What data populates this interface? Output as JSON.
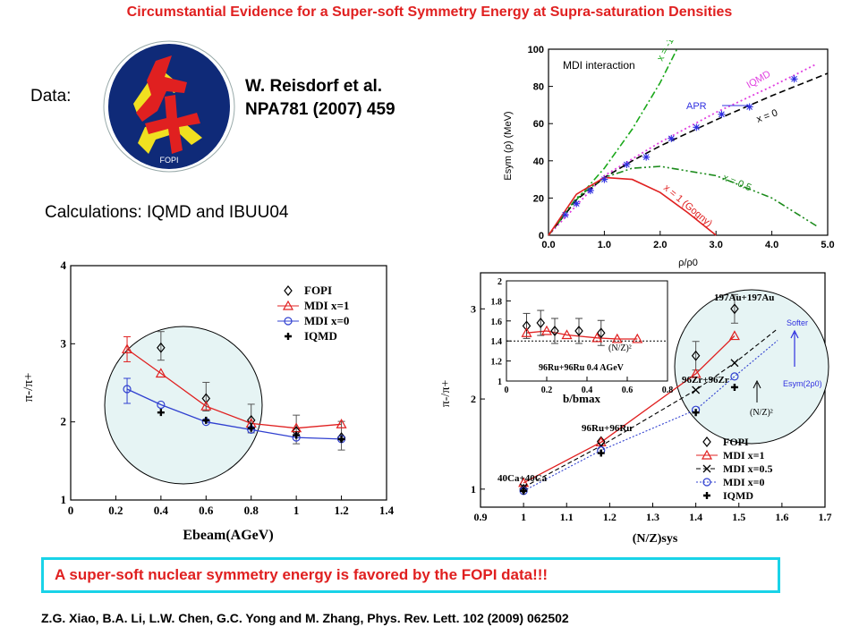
{
  "slide": {
    "title": "Circumstantial Evidence for a Super-soft Symmetry Energy at Supra-saturation Densities",
    "data_label": "Data:",
    "reference_line1": "W. Reisdorf et al.",
    "reference_line2": "NPA781 (2007) 459",
    "logo_text": "FOPI",
    "calculations_line": "Calculations: IQMD and IBUU04",
    "conclusion": "A super-soft  nuclear symmetry energy is favored by the FOPI data!!!",
    "citation": "Z.G. Xiao, B.A. Li, L.W. Chen, G.C. Yong and M. Zhang, Phys. Rev. Lett. 102 (2009) 062502"
  },
  "colors": {
    "title": "#e02020",
    "conclusion_border": "#19d3e8",
    "highlight_circle": "#e6f4f4"
  },
  "chart_data": [
    {
      "type": "line",
      "title": "MDI interaction",
      "xlabel": "ρ/ρ0",
      "ylabel": "Esym (ρ) (MeV)",
      "xlim": [
        0,
        5
      ],
      "ylim": [
        0,
        100
      ],
      "xticks": [
        "0.0",
        "1.0",
        "2.0",
        "3.0",
        "4.0",
        "5.0"
      ],
      "yticks": [
        "0",
        "20",
        "40",
        "60",
        "80",
        "100"
      ],
      "series": [
        {
          "name": "x = -1",
          "color": "#1aa81a",
          "x": [
            0,
            0.5,
            1,
            1.5,
            2,
            2.3
          ],
          "y": [
            0,
            19,
            36,
            57,
            82,
            100
          ]
        },
        {
          "name": "IQMD",
          "color": "#e040e0",
          "x": [
            0,
            1,
            2,
            3,
            4,
            4.8
          ],
          "y": [
            0,
            32,
            50,
            66,
            80,
            92
          ]
        },
        {
          "name": "x = 0",
          "color": "#000000",
          "x": [
            0,
            0.5,
            1,
            1.5,
            2,
            3,
            4,
            5
          ],
          "y": [
            0,
            19,
            31,
            40,
            48,
            62,
            75,
            87
          ]
        },
        {
          "name": "x = 0.5",
          "color": "#1a8a1a",
          "x": [
            0,
            0.5,
            1,
            1.5,
            2,
            3,
            4,
            4.8
          ],
          "y": [
            0,
            20,
            31,
            36,
            37,
            32,
            20,
            5
          ]
        },
        {
          "name": "x = 1 (Gogny)",
          "color": "#e02020",
          "x": [
            0,
            0.5,
            1,
            1.5,
            2,
            2.5,
            3
          ],
          "y": [
            0,
            22,
            31,
            30,
            23,
            12,
            0
          ]
        },
        {
          "name": "APR",
          "color": "#3030e0",
          "x": [
            0.3,
            0.5,
            0.75,
            1.0,
            1.4,
            1.75,
            2.2,
            2.65,
            3.1,
            3.6,
            4.4
          ],
          "y": [
            11,
            17,
            24,
            30,
            38,
            42,
            52,
            58,
            65,
            69,
            84
          ]
        }
      ]
    },
    {
      "type": "line",
      "xlabel": "Ebeam(AGeV)",
      "ylabel": "π-/π+",
      "xlim": [
        0,
        1.4
      ],
      "ylim": [
        1,
        4
      ],
      "xticks": [
        "0",
        "0.2",
        "0.4",
        "0.6",
        "0.8",
        "1",
        "1.2",
        "1.4"
      ],
      "yticks": [
        "1",
        "2",
        "3",
        "4"
      ],
      "series": [
        {
          "name": "FOPI",
          "x": [
            0.4,
            0.6,
            0.8,
            1.0,
            1.2
          ],
          "y": [
            2.95,
            2.3,
            2.02,
            1.88,
            1.8
          ]
        },
        {
          "name": "MDI x=1",
          "x": [
            0.25,
            0.4,
            0.6,
            0.8,
            1.0,
            1.2
          ],
          "y": [
            2.93,
            2.62,
            2.2,
            1.98,
            1.92,
            1.97
          ]
        },
        {
          "name": "MDI x=0",
          "x": [
            0.25,
            0.4,
            0.6,
            0.8,
            1.0,
            1.2
          ],
          "y": [
            2.42,
            2.22,
            2.0,
            1.9,
            1.8,
            1.78
          ]
        },
        {
          "name": "IQMD",
          "x": [
            0.4,
            0.6,
            0.8,
            1.0,
            1.2
          ],
          "y": [
            2.12,
            2.02,
            1.92,
            1.83,
            1.78
          ]
        }
      ]
    },
    {
      "type": "line",
      "xlabel": "(N/Z)sys",
      "ylabel": "π-/π+",
      "xlim": [
        0.9,
        1.7
      ],
      "ylim": [
        0.8,
        3.4
      ],
      "xticks": [
        "0.9",
        "1",
        "1.1",
        "1.2",
        "1.3",
        "1.4",
        "1.5",
        "1.6",
        "1.7"
      ],
      "yticks": [
        "1",
        "2",
        "3"
      ],
      "annotations": [
        "40Ca+40Ca",
        "96Ru+96Ru",
        "96Zr+96Zr",
        "197Au+197Au",
        "Softer",
        "Esym(2ρ0)",
        "(N/Z)²"
      ],
      "series": [
        {
          "name": "FOPI",
          "x": [
            1.0,
            1.18,
            1.4,
            1.49
          ],
          "y": [
            1.0,
            1.53,
            2.48,
            3.0
          ]
        },
        {
          "name": "MDI x=1",
          "x": [
            1.0,
            1.18,
            1.4,
            1.49
          ],
          "y": [
            1.07,
            1.52,
            2.28,
            2.7
          ]
        },
        {
          "name": "MDI x=0.5",
          "x": [
            1.0,
            1.18,
            1.4,
            1.49
          ],
          "y": [
            1.02,
            1.48,
            2.1,
            2.4
          ]
        },
        {
          "name": "MDI x=0",
          "x": [
            1.0,
            1.18,
            1.4,
            1.49
          ],
          "y": [
            0.98,
            1.43,
            1.88,
            2.25
          ]
        },
        {
          "name": "IQMD",
          "x": [
            1.0,
            1.18,
            1.4,
            1.49
          ],
          "y": [
            0.98,
            1.4,
            1.85,
            2.13
          ]
        }
      ]
    },
    {
      "type": "line",
      "title": "96Ru+96Ru 0.4 AGeV",
      "xlabel": "b/bmax",
      "xlim": [
        0,
        0.8
      ],
      "ylim": [
        1,
        2
      ],
      "xticks": [
        "0",
        "0.2",
        "0.4",
        "0.6",
        "0.8"
      ],
      "yticks": [
        "1",
        "1.2",
        "1.4",
        "1.6",
        "1.8",
        "2"
      ],
      "reference_label": "(N/Z)²",
      "series": [
        {
          "name": "FOPI",
          "x": [
            0.1,
            0.17,
            0.24,
            0.36,
            0.47
          ],
          "y": [
            1.55,
            1.58,
            1.5,
            1.5,
            1.48
          ]
        },
        {
          "name": "MDI x=1",
          "x": [
            0.1,
            0.2,
            0.3,
            0.45,
            0.55,
            0.65
          ],
          "y": [
            1.48,
            1.5,
            1.46,
            1.43,
            1.42,
            1.42
          ]
        }
      ]
    }
  ]
}
